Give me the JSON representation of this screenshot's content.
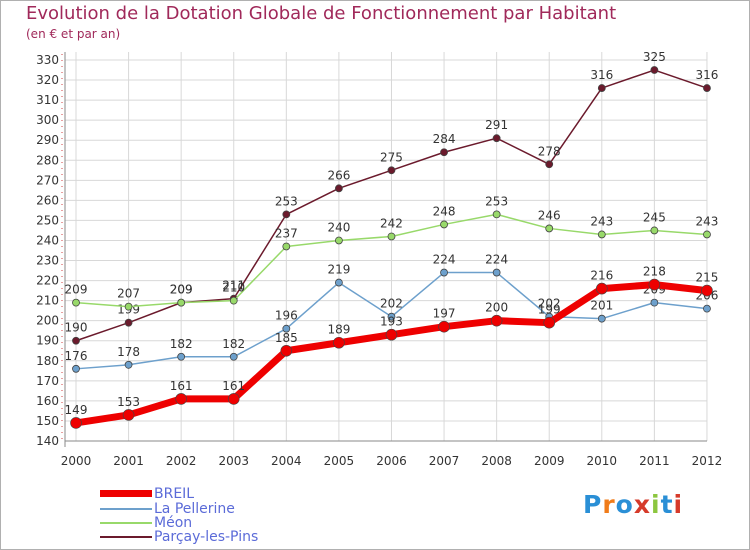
{
  "chart_data": {
    "type": "line",
    "title": "Evolution de la Dotation Globale de Fonctionnement par Habitant",
    "subtitle": "(en € et par an)",
    "xlabel": "",
    "ylabel": "",
    "ylim": [
      140,
      330
    ],
    "ytick_step": 10,
    "categories": [
      "2000",
      "2001",
      "2002",
      "2003",
      "2004",
      "2005",
      "2006",
      "2007",
      "2008",
      "2009",
      "2010",
      "2011",
      "2012"
    ],
    "series": [
      {
        "name": "Parçay-les-Pins",
        "color": "#6b1a2c",
        "values": [
          190,
          199,
          209,
          211,
          253,
          266,
          275,
          284,
          291,
          278,
          316,
          325,
          316
        ]
      },
      {
        "name": "Méon",
        "color": "#98d96a",
        "values": [
          209,
          207,
          209,
          210,
          237,
          240,
          242,
          248,
          253,
          246,
          243,
          245,
          243
        ]
      },
      {
        "name": "La Pellerine",
        "color": "#6da0cc",
        "values": [
          176,
          178,
          182,
          182,
          196,
          219,
          202,
          224,
          224,
          202,
          201,
          209,
          206
        ]
      },
      {
        "name": "BREIL",
        "color": "#ee0000",
        "values": [
          149,
          153,
          161,
          161,
          185,
          189,
          193,
          197,
          200,
          199,
          216,
          218,
          215
        ]
      }
    ]
  },
  "legend": {
    "items": [
      {
        "label": "BREIL",
        "color": "#ee0000"
      },
      {
        "label": "La Pellerine",
        "color": "#6da0cc"
      },
      {
        "label": "Méon",
        "color": "#98d96a"
      },
      {
        "label": "Parçay-les-Pins",
        "color": "#6b1a2c"
      }
    ]
  },
  "logo": {
    "text": "Proxiti"
  }
}
